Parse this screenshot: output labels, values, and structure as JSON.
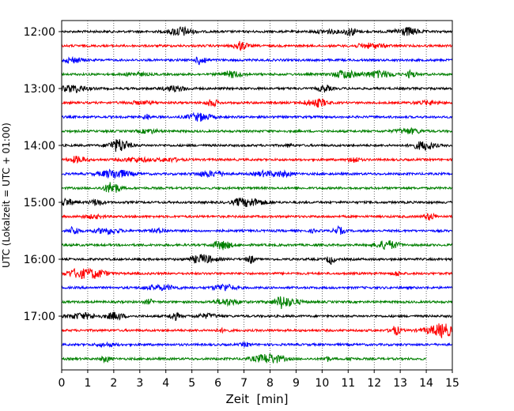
{
  "chart_data": {
    "type": "line",
    "title": "",
    "xlabel": "Zeit  [min]",
    "ylabel": "UTC (Lokalzeit = UTC + 01:00)",
    "xlim": [
      0,
      15
    ],
    "x_ticks": [
      "0",
      "1",
      "2",
      "3",
      "4",
      "5",
      "6",
      "7",
      "8",
      "9",
      "10",
      "11",
      "12",
      "13",
      "14",
      "15"
    ],
    "y_tick_labels": [
      "12:00",
      "13:00",
      "14:00",
      "15:00",
      "16:00",
      "17:00"
    ],
    "grid": "vertical dotted",
    "trace_interval_min": 15,
    "color_cycle": [
      "#000000",
      "#ff0000",
      "#0000ff",
      "#008000"
    ],
    "traces": [
      {
        "start": "12:00",
        "end_min": 15
      },
      {
        "start": "12:15",
        "end_min": 15
      },
      {
        "start": "12:30",
        "end_min": 15
      },
      {
        "start": "12:45",
        "end_min": 15
      },
      {
        "start": "13:00",
        "end_min": 15
      },
      {
        "start": "13:15",
        "end_min": 15
      },
      {
        "start": "13:30",
        "end_min": 15
      },
      {
        "start": "13:45",
        "end_min": 15
      },
      {
        "start": "14:00",
        "end_min": 15
      },
      {
        "start": "14:15",
        "end_min": 15
      },
      {
        "start": "14:30",
        "end_min": 15
      },
      {
        "start": "14:45",
        "end_min": 15
      },
      {
        "start": "15:00",
        "end_min": 15
      },
      {
        "start": "15:15",
        "end_min": 15
      },
      {
        "start": "15:30",
        "end_min": 15
      },
      {
        "start": "15:45",
        "end_min": 15
      },
      {
        "start": "16:00",
        "end_min": 15
      },
      {
        "start": "16:15",
        "end_min": 15
      },
      {
        "start": "16:30",
        "end_min": 15
      },
      {
        "start": "16:45",
        "end_min": 15
      },
      {
        "start": "17:00",
        "end_min": 15
      },
      {
        "start": "17:15",
        "end_min": 15
      },
      {
        "start": "17:30",
        "end_min": 15
      },
      {
        "start": "17:45",
        "end_min": 14
      }
    ]
  }
}
